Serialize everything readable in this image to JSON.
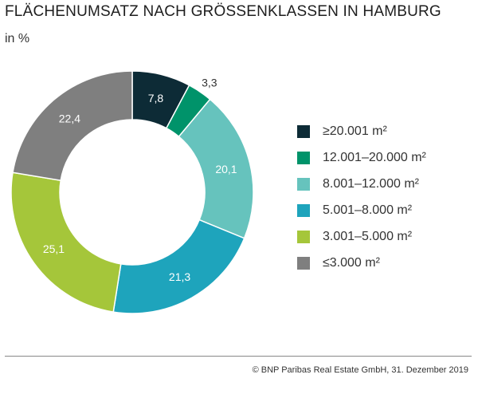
{
  "chart_data": {
    "type": "pie",
    "donut": true,
    "title": "FLÄCHENUMSATZ NACH GRÖSSENKLASSEN IN HAMBURG",
    "subtitle": "in %",
    "legend_position": "right",
    "slices": [
      {
        "name": "≥20.001 m²",
        "value": 7.8,
        "label": "7,8",
        "color": "#0d2b36"
      },
      {
        "name": "12.001–20.000 m²",
        "value": 3.3,
        "label": "3,3",
        "color": "#00936a"
      },
      {
        "name": "8.001–12.000 m²",
        "value": 20.1,
        "label": "20,1",
        "color": "#66c3bd"
      },
      {
        "name": "5.001–8.000 m²",
        "value": 21.3,
        "label": "21,3",
        "color": "#1ea4bc"
      },
      {
        "name": "3.001–5.000 m²",
        "value": 25.1,
        "label": "25,1",
        "color": "#a5c63a"
      },
      {
        "name": "≤3.000 m²",
        "value": 22.4,
        "label": "22,4",
        "color": "#7f7f7f"
      }
    ]
  },
  "footer": {
    "source": "© BNP Paribas Real Estate GmbH, 31. Dezember 2019"
  }
}
